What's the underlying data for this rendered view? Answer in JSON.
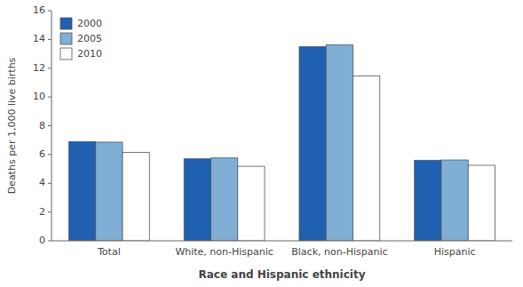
{
  "chart_data": {
    "type": "bar",
    "categories": [
      "Total",
      "White, non-Hispanic",
      "Black, non-Hispanic",
      "Hispanic"
    ],
    "series": [
      {
        "name": "2000",
        "color": "#2060b0",
        "values": [
          6.9,
          5.7,
          13.5,
          5.6
        ]
      },
      {
        "name": "2005",
        "color": "#7fafd4",
        "values": [
          6.86,
          5.76,
          13.63,
          5.62
        ]
      },
      {
        "name": "2010",
        "color": "#ffffff",
        "values": [
          6.14,
          5.18,
          11.46,
          5.25
        ]
      }
    ],
    "xlabel": "Race and Hispanic ethnicity",
    "ylabel": "Deaths per 1,000 live births",
    "ylim": [
      0,
      16
    ],
    "yticks": [
      0,
      2,
      4,
      6,
      8,
      10,
      12,
      14,
      16
    ],
    "grid": false,
    "legend": "upper left"
  }
}
